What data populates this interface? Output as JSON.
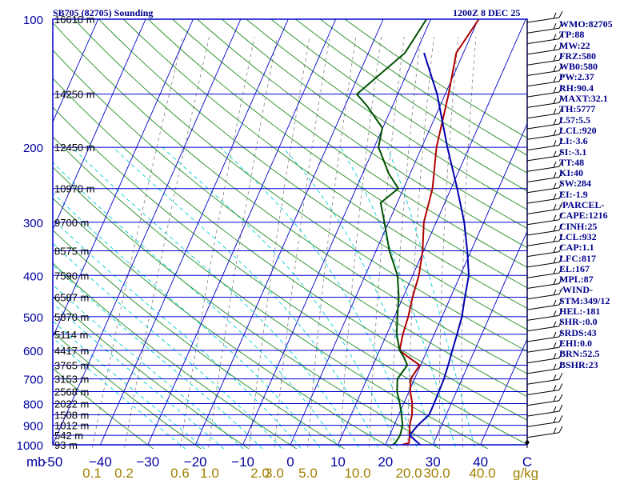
{
  "header": {
    "title": "SB705 (82705) Sounding",
    "datetime": "1200Z  8 DEC 25"
  },
  "chart_data": {
    "type": "line",
    "subtype": "skew-t log-p",
    "xlim": [
      -50,
      50
    ],
    "ylim": [
      1000,
      100
    ],
    "y_scale": "log",
    "pressure_labels": [
      100,
      200,
      300,
      400,
      500,
      600,
      700,
      800,
      900,
      1000
    ],
    "pressure_axis_unit": "mb",
    "temperature_ticks": [
      -50,
      -40,
      -30,
      -20,
      -10,
      0,
      10,
      20,
      30,
      40
    ],
    "temperature_tick_labels": [
      "-50",
      "−40",
      "−30",
      "−20",
      "−10",
      "0",
      "10",
      "20",
      "30",
      "40"
    ],
    "temperature_axis_unit": "C",
    "mixing_ratio_labels": [
      "0.1",
      "0.2",
      "0.6",
      "1.0",
      "2.0",
      "3.0",
      "5.0",
      "10.0",
      "20.0",
      "30.0",
      "40.0"
    ],
    "mixing_ratio_label_x": [
      115,
      155,
      225,
      262,
      325,
      343,
      385,
      447,
      511,
      546,
      603
    ],
    "mixing_ratio_unit": "g/kg",
    "height_labels": [
      {
        "p": 100,
        "h": "16610 m"
      },
      {
        "p": 150,
        "h": "14250 m"
      },
      {
        "p": 200,
        "h": "12450 m"
      },
      {
        "p": 250,
        "h": "10970 m"
      },
      {
        "p": 300,
        "h": "9700 m"
      },
      {
        "p": 350,
        "h": "8575 m"
      },
      {
        "p": 400,
        "h": "7590 m"
      },
      {
        "p": 450,
        "h": "6587 m"
      },
      {
        "p": 500,
        "h": "5870 m"
      },
      {
        "p": 550,
        "h": "5114 m"
      },
      {
        "p": 600,
        "h": "4417 m"
      },
      {
        "p": 650,
        "h": "3765 m"
      },
      {
        "p": 700,
        "h": "3153 m"
      },
      {
        "p": 750,
        "h": "2568 m"
      },
      {
        "p": 800,
        "h": "2022 m"
      },
      {
        "p": 850,
        "h": "1508 m"
      },
      {
        "p": 900,
        "h": "1012 m"
      },
      {
        "p": 950,
        "h": "542 m"
      },
      {
        "p": 1000,
        "h": "93 m"
      }
    ],
    "series": [
      {
        "key": "temperature",
        "color": "#b00000",
        "points": [
          [
            1000,
            23.5
          ],
          [
            990,
            24.8
          ],
          [
            950,
            24.2
          ],
          [
            900,
            23.3
          ],
          [
            850,
            22.8
          ],
          [
            800,
            21.8
          ],
          [
            750,
            20.3
          ],
          [
            700,
            19.2
          ],
          [
            650,
            19.8
          ],
          [
            620,
            16.4
          ],
          [
            600,
            14.2
          ],
          [
            550,
            13.4
          ],
          [
            500,
            12.9
          ],
          [
            450,
            12.0
          ],
          [
            400,
            11.3
          ],
          [
            350,
            9.8
          ],
          [
            300,
            7.4
          ],
          [
            250,
            6.1
          ],
          [
            200,
            3.1
          ],
          [
            150,
            0.7
          ],
          [
            120,
            -1.5
          ],
          [
            100,
            0.1
          ]
        ]
      },
      {
        "key": "dewpoint",
        "color": "#005000",
        "points": [
          [
            1000,
            21.5
          ],
          [
            990,
            21.9
          ],
          [
            950,
            22.2
          ],
          [
            900,
            21.8
          ],
          [
            850,
            20.6
          ],
          [
            800,
            19.2
          ],
          [
            750,
            17.5
          ],
          [
            700,
            16.4
          ],
          [
            650,
            17.2
          ],
          [
            620,
            15.6
          ],
          [
            600,
            14.2
          ],
          [
            550,
            12.1
          ],
          [
            500,
            10.6
          ],
          [
            450,
            9.1
          ],
          [
            400,
            6.8
          ],
          [
            350,
            2.8
          ],
          [
            300,
            -0.9
          ],
          [
            270,
            -3.5
          ],
          [
            250,
            -1.1
          ],
          [
            230,
            -4.6
          ],
          [
            210,
            -7.5
          ],
          [
            200,
            -9.1
          ],
          [
            180,
            -10.1
          ],
          [
            160,
            -15.3
          ],
          [
            150,
            -18.6
          ],
          [
            120,
            -12.3
          ],
          [
            100,
            -10.9
          ]
        ]
      },
      {
        "key": "parcel",
        "color": "#0000b0",
        "points": [
          [
            1000,
            27.3
          ],
          [
            950,
            24.2
          ],
          [
            900,
            25.0
          ],
          [
            850,
            26.4
          ],
          [
            800,
            26.4
          ],
          [
            750,
            26.3
          ],
          [
            700,
            26.2
          ],
          [
            650,
            25.8
          ],
          [
            600,
            25.3
          ],
          [
            550,
            24.8
          ],
          [
            500,
            24.2
          ],
          [
            450,
            23.0
          ],
          [
            400,
            21.8
          ],
          [
            350,
            19.2
          ],
          [
            300,
            15.9
          ],
          [
            250,
            11.3
          ],
          [
            200,
            5.4
          ],
          [
            150,
            -1.7
          ],
          [
            120,
            -8.3
          ]
        ]
      }
    ]
  },
  "stats": [
    "WMO:82705",
    "TP:88",
    "MW:22",
    "FRZ:580",
    "WB0:580",
    "PW:2.37",
    "RH:90.4",
    "MAXT:32.1",
    "TH:5777",
    "L57:5.5",
    "LCL:920",
    "LI:-3.6",
    "SI:-3.1",
    "TT:48",
    "KI:40",
    "SW:284",
    "EI:-1.9",
    "-PARCEL-",
    "CAPE:1216",
    "CINH:25",
    "LCL:932",
    "CAP:1.1",
    "LFC:817",
    "EL:167",
    "MPL:87",
    "-WIND-",
    "STM:349/12",
    "HEL:-181",
    "SHR-:0.0",
    "SRDS:43",
    "EHI:0.0",
    "BRN:52.5",
    "BSHR:23"
  ],
  "colors": {
    "isobar": "#0000cd",
    "isotherm": "#0000cd",
    "dry_adiabat": "#228b22",
    "moist_adiabat": "#00ced1",
    "mixing_ratio": "#808080",
    "labels": "#0000a0",
    "mixing_labels": "#a08000",
    "text": "#00008b"
  }
}
